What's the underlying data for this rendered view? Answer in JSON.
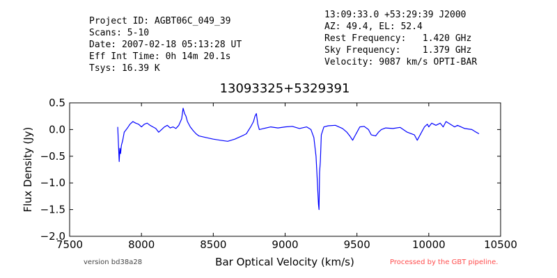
{
  "header_left": [
    "Project ID: AGBT06C_049_39",
    "Scans: 5-10",
    "Date: 2007-02-18 05:13:28 UT",
    "Eff Int Time: 0h 14m 20.1s",
    "Tsys: 16.39 K"
  ],
  "header_right": [
    "13:09:33.0 +53:29:39 J2000",
    "AZ: 49.4, EL: 52.4",
    "Rest Frequency:   1.420 GHz",
    "Sky Frequency:    1.379 GHz",
    "Velocity: 9087 km/s OPTI-BAR"
  ],
  "footer": {
    "version": "version bd38a28",
    "pipeline": "Processed by the GBT pipeline."
  },
  "colors": {
    "series": "#0000ff",
    "pipeline_text": "#ff4a4a",
    "version_text": "#444444"
  },
  "chart_data": {
    "type": "line",
    "title": "13093325+5329391",
    "xlabel": "Bar Optical Velocity (km/s)",
    "ylabel": "Flux Density (Jy)",
    "xlim": [
      7500,
      10500
    ],
    "ylim": [
      -2.0,
      0.5
    ],
    "xticks": [
      7500,
      8000,
      8500,
      9000,
      9500,
      10000,
      10500
    ],
    "xtick_labels": [
      "7500",
      "8000",
      "8500",
      "9000",
      "9500",
      "10000",
      "10500"
    ],
    "yticks": [
      -2.0,
      -1.5,
      -1.0,
      -0.5,
      0.0,
      0.5
    ],
    "ytick_labels": [
      "−2.0",
      "−1.5",
      "−1.0",
      "−0.5",
      "0.0",
      "0.5"
    ],
    "grid": false,
    "series": [
      {
        "x": [
          7835,
          7840,
          7845,
          7850,
          7855,
          7860,
          7870,
          7880,
          7900,
          7920,
          7940,
          7960,
          7980,
          8000,
          8020,
          8040,
          8060,
          8080,
          8100,
          8120,
          8140,
          8160,
          8180,
          8200,
          8220,
          8240,
          8260,
          8280,
          8290,
          8300,
          8310,
          8320,
          8340,
          8360,
          8380,
          8400,
          8450,
          8500,
          8550,
          8600,
          8650,
          8700,
          8730,
          8760,
          8780,
          8790,
          8800,
          8810,
          8820,
          8850,
          8900,
          8950,
          9000,
          9050,
          9100,
          9150,
          9180,
          9200,
          9215,
          9225,
          9232,
          9236,
          9240,
          9245,
          9252,
          9270,
          9300,
          9350,
          9400,
          9430,
          9450,
          9470,
          9480,
          9500,
          9520,
          9550,
          9580,
          9600,
          9630,
          9650,
          9670,
          9700,
          9750,
          9800,
          9850,
          9900,
          9920,
          9950,
          9970,
          9990,
          10000,
          10020,
          10050,
          10080,
          10100,
          10120,
          10150,
          10180,
          10200,
          10250,
          10300,
          10330,
          10350
        ],
        "y": [
          0.05,
          -0.3,
          -0.6,
          -0.35,
          -0.45,
          -0.3,
          -0.2,
          -0.05,
          0.02,
          0.1,
          0.15,
          0.12,
          0.1,
          0.05,
          0.1,
          0.12,
          0.08,
          0.05,
          0.02,
          -0.05,
          0.0,
          0.05,
          0.08,
          0.03,
          0.05,
          0.02,
          0.08,
          0.2,
          0.4,
          0.3,
          0.25,
          0.15,
          0.05,
          -0.02,
          -0.08,
          -0.12,
          -0.15,
          -0.18,
          -0.2,
          -0.22,
          -0.18,
          -0.12,
          -0.08,
          0.05,
          0.15,
          0.25,
          0.3,
          0.1,
          0.0,
          0.02,
          0.05,
          0.03,
          0.05,
          0.06,
          0.02,
          0.05,
          0.0,
          -0.15,
          -0.5,
          -1.0,
          -1.4,
          -1.5,
          -0.8,
          -0.6,
          -0.1,
          0.05,
          0.07,
          0.08,
          0.02,
          -0.05,
          -0.12,
          -0.2,
          -0.15,
          -0.05,
          0.05,
          0.06,
          0.0,
          -0.1,
          -0.12,
          -0.05,
          0.0,
          0.03,
          0.02,
          0.04,
          -0.05,
          -0.1,
          -0.2,
          -0.05,
          0.05,
          0.1,
          0.05,
          0.12,
          0.08,
          0.12,
          0.05,
          0.15,
          0.1,
          0.05,
          0.08,
          0.02,
          0.0,
          -0.05,
          -0.08
        ]
      }
    ]
  }
}
